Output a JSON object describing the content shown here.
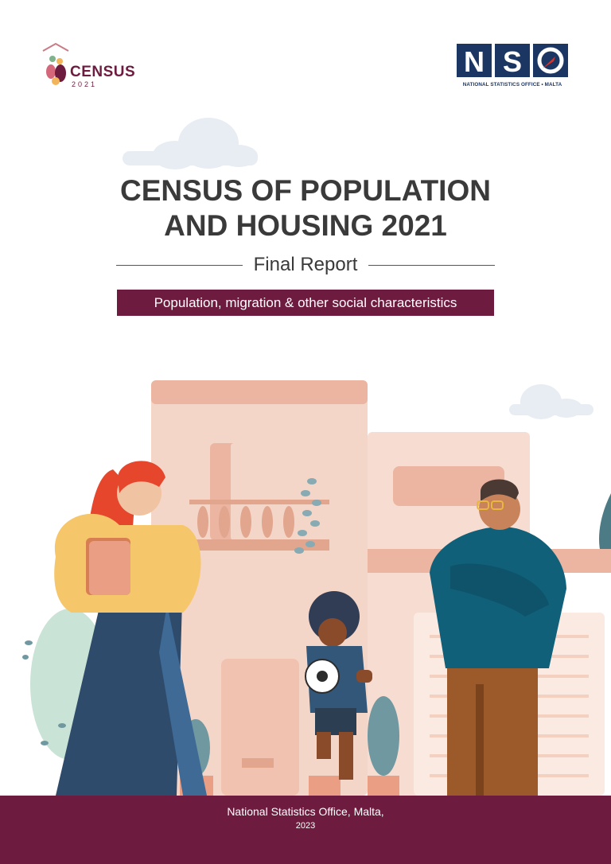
{
  "logos": {
    "census": {
      "word": "CENSUS",
      "year": "2021"
    },
    "nso": {
      "letters": "NSO",
      "subtitle": "NATIONAL STATISTICS OFFICE • MALTA"
    }
  },
  "title": "CENSUS OF POPULATION AND HOUSING 2021",
  "subtitle": "Final Report",
  "banner": "Population, migration & other social characteristics",
  "footer": {
    "organisation": "National Statistics Office, Malta,",
    "year": "2023"
  },
  "colors": {
    "brand": "#6e1b40",
    "nso_blue": "#1c3663",
    "title": "#3a3a3a"
  }
}
